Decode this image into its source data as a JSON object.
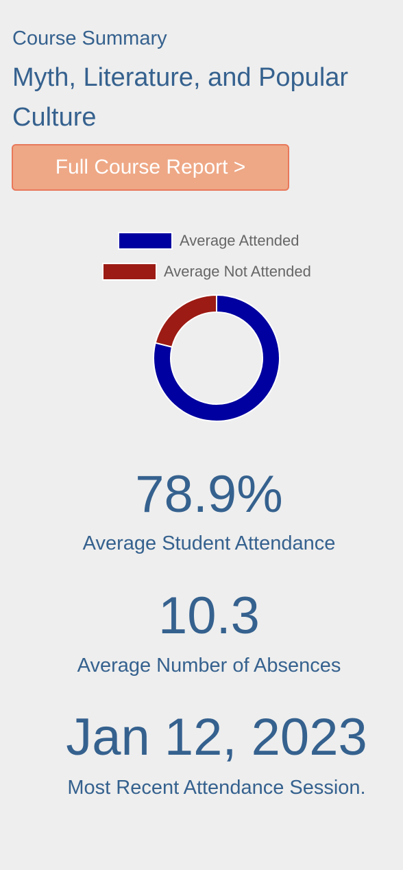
{
  "summary": {
    "eyebrow": "Course Summary",
    "course_title": "Myth, Literature, and Popular Culture",
    "report_button_label": "Full Course Report >"
  },
  "legend": [
    {
      "label": "Average Attended",
      "color": "#0000a0"
    },
    {
      "label": "Average Not Attended",
      "color": "#9c1b14"
    }
  ],
  "chart_data": {
    "type": "pie",
    "variant": "doughnut",
    "categories": [
      "Average Attended",
      "Average Not Attended"
    ],
    "values": [
      78.9,
      21.1
    ],
    "colors": [
      "#0000a0",
      "#9c1b14"
    ],
    "legend_position": "top"
  },
  "stats": {
    "attendance_value": "78.9%",
    "attendance_caption": "Average Student Attendance",
    "absences_value": "10.3",
    "absences_caption": "Average Number of Absences",
    "recent_session_value": "Jan 12, 2023",
    "recent_session_caption": "Most Recent Attendance Session."
  }
}
